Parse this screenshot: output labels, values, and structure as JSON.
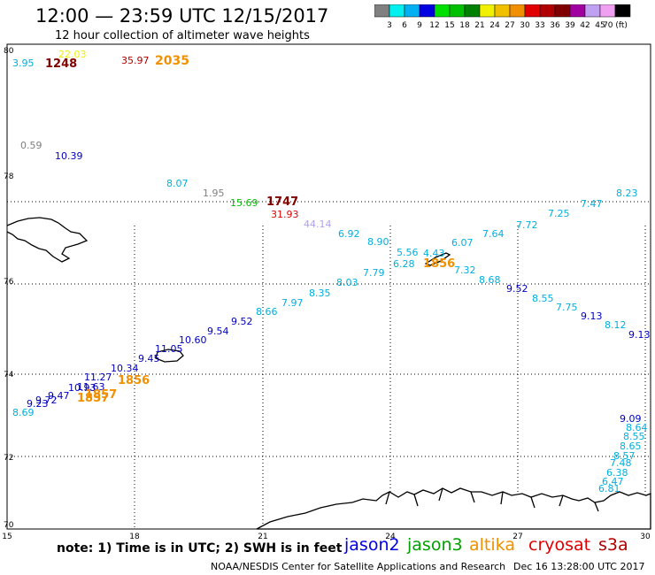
{
  "header": {
    "title": "12:00 — 23:59 UTC 12/15/2017",
    "subtitle": "12 hour collection of altimeter wave heights"
  },
  "scale": {
    "colors": [
      "#808080",
      "#00f0f0",
      "#00b0f0",
      "#0000e0",
      "#00e000",
      "#00c000",
      "#008000",
      "#f0f000",
      "#f0c000",
      "#f09000",
      "#e00000",
      "#b00000",
      "#800000",
      "#a000a0",
      "#c0a0f0",
      "#f0a0f0",
      "#000000"
    ],
    "labels": [
      "3",
      "6",
      "9",
      "12",
      "15",
      "18",
      "21",
      "24",
      "27",
      "30",
      "33",
      "36",
      "39",
      "42",
      "45",
      "70 (ft)"
    ]
  },
  "axes": {
    "lat_labels": [
      "80",
      "78",
      "76",
      "74",
      "72",
      "70"
    ],
    "lon_labels": [
      "15",
      "18",
      "21",
      "24",
      "27",
      "30"
    ]
  },
  "observations": [
    {
      "t": "3.95",
      "c": "#00b0e0"
    },
    {
      "t": "1248",
      "c": "#800000"
    },
    {
      "t": "22.03",
      "c": "#f0f000"
    },
    {
      "t": "35.97",
      "c": "#b00000"
    },
    {
      "t": "2035",
      "c": "#f09000"
    },
    {
      "t": "0.59",
      "c": "#808080"
    },
    {
      "t": "10.39",
      "c": "#0000c0"
    },
    {
      "t": "8.07",
      "c": "#00b0e0"
    },
    {
      "t": "1.95",
      "c": "#808080"
    },
    {
      "t": "15.69",
      "c": "#00c000"
    },
    {
      "t": "1747",
      "c": "#800000"
    },
    {
      "t": "31.93",
      "c": "#e00000"
    },
    {
      "t": "44.14",
      "c": "#b0a0f0"
    },
    {
      "t": "6.92",
      "c": "#00b0e0"
    },
    {
      "t": "8.90",
      "c": "#00b0e0"
    },
    {
      "t": "5.56",
      "c": "#00b0e0"
    },
    {
      "t": "4.43",
      "c": "#00b0e0"
    },
    {
      "t": "6.07",
      "c": "#00b0e0"
    },
    {
      "t": "7.64",
      "c": "#00b0e0"
    },
    {
      "t": "7.72",
      "c": "#00b0e0"
    },
    {
      "t": "7.25",
      "c": "#00b0e0"
    },
    {
      "t": "7.47",
      "c": "#00b0e0"
    },
    {
      "t": "8.23",
      "c": "#00b0e0"
    },
    {
      "t": "6.28",
      "c": "#00b0e0"
    },
    {
      "t": "1856",
      "c": "#f09000"
    },
    {
      "t": "7.32",
      "c": "#00b0e0"
    },
    {
      "t": "7.79",
      "c": "#00b0e0"
    },
    {
      "t": "8.68",
      "c": "#00b0e0"
    },
    {
      "t": "9.52",
      "c": "#0000c0"
    },
    {
      "t": "8.03",
      "c": "#00b0e0"
    },
    {
      "t": "8.55",
      "c": "#00b0e0"
    },
    {
      "t": "8.35",
      "c": "#00b0e0"
    },
    {
      "t": "7.75",
      "c": "#00b0e0"
    },
    {
      "t": "7.97",
      "c": "#00b0e0"
    },
    {
      "t": "9.13",
      "c": "#0000c0"
    },
    {
      "t": "8.66",
      "c": "#00b0e0"
    },
    {
      "t": "8.12",
      "c": "#00b0e0"
    },
    {
      "t": "9.52",
      "c": "#0000c0"
    },
    {
      "t": "9.13",
      "c": "#0000c0"
    },
    {
      "t": "9.54",
      "c": "#0000c0"
    },
    {
      "t": "10.60",
      "c": "#0000c0"
    },
    {
      "t": "11.05",
      "c": "#0000c0"
    },
    {
      "t": "9.45",
      "c": "#0000c0"
    },
    {
      "t": "10.34",
      "c": "#0000c0"
    },
    {
      "t": "1856",
      "c": "#f09000"
    },
    {
      "t": "11.27",
      "c": "#0000c0"
    },
    {
      "t": "11.63",
      "c": "#0000c0"
    },
    {
      "t": "10.93",
      "c": "#0000c0"
    },
    {
      "t": "1857",
      "c": "#f09000"
    },
    {
      "t": "9.47",
      "c": "#0000c0"
    },
    {
      "t": "9.72",
      "c": "#0000c0"
    },
    {
      "t": "9.23",
      "c": "#0000c0"
    },
    {
      "t": "1857",
      "c": "#f09000"
    },
    {
      "t": "8.69",
      "c": "#00b0e0"
    },
    {
      "t": "9.09",
      "c": "#0000c0"
    },
    {
      "t": "8.64",
      "c": "#00b0e0"
    },
    {
      "t": "8.55",
      "c": "#00b0e0"
    },
    {
      "t": "8.65",
      "c": "#00b0e0"
    },
    {
      "t": "8.57",
      "c": "#00b0e0"
    },
    {
      "t": "7.48",
      "c": "#00b0e0"
    },
    {
      "t": "6.38",
      "c": "#00b0e0"
    },
    {
      "t": "6.47",
      "c": "#00b0e0"
    },
    {
      "t": "6.81",
      "c": "#00b0e0"
    }
  ],
  "footer": {
    "note": "note:  1) Time is in UTC;  2) SWH is in feet",
    "satellites": [
      {
        "name": "jason2",
        "color": "#0000e0"
      },
      {
        "name": "jason3",
        "color": "#00a000"
      },
      {
        "name": "altika",
        "color": "#f09000"
      },
      {
        "name": "cryosat",
        "color": "#e00000"
      },
      {
        "name": "s3a",
        "color": "#b00000"
      }
    ],
    "credit": "NOAA/NESDIS Center for Satellite Applications and Research",
    "timestamp": "Dec 16 13:28:00 UTC 2017"
  }
}
